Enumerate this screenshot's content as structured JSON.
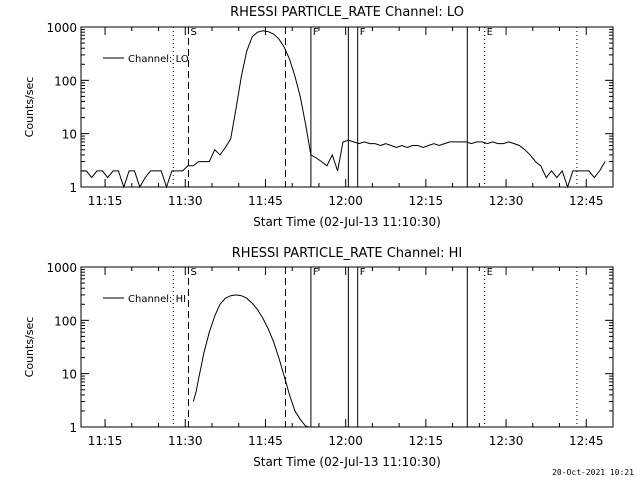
{
  "footer": {
    "timestamp": "20-Oct-2021 10:21"
  },
  "chart_data": [
    {
      "type": "line",
      "title": "RHESSI PARTICLE_RATE Channel: LO",
      "xlabel": "Start Time (02-Jul-13 11:10:30)",
      "ylabel": "Counts/sec",
      "x_unit": "minutes after 11:10:30",
      "xlim": [
        0,
        99.5
      ],
      "ylim": [
        1,
        1000
      ],
      "yscale": "log",
      "grid": false,
      "legend": {
        "label": "Channel: LO",
        "placement": "top-left"
      },
      "x_ticks": [
        "11:15",
        "11:30",
        "11:45",
        "12:00",
        "12:15",
        "12:30",
        "12:45"
      ],
      "y_ticks": [
        "1",
        "10",
        "100",
        "1000"
      ],
      "markers": [
        {
          "label": "S",
          "time": "11:30:36",
          "style": "dashed"
        },
        {
          "label": "",
          "time": "11:48:45",
          "style": "dashed"
        },
        {
          "label": "",
          "time": "11:27:45",
          "style": "dotted"
        },
        {
          "label": "F",
          "time": "11:53:30",
          "style": "solid"
        },
        {
          "label": "",
          "time": "12:00:30",
          "style": "solid"
        },
        {
          "label": "F",
          "time": "12:02:15",
          "style": "solid"
        },
        {
          "label": "",
          "time": "12:22:45",
          "style": "solid"
        },
        {
          "label": "E",
          "time": "12:26:00",
          "style": "dotted"
        },
        {
          "label": "",
          "time": "12:43:15",
          "style": "dotted"
        }
      ],
      "series": [
        {
          "name": "Channel: LO",
          "x": [
            0,
            1,
            2,
            3,
            4,
            5,
            6,
            7,
            8,
            9,
            10,
            11,
            12,
            13,
            14,
            15,
            16,
            17,
            18,
            19,
            20,
            21,
            22,
            23,
            24,
            25,
            26,
            27,
            28,
            29,
            30,
            31,
            32,
            33,
            34,
            35,
            36,
            37,
            38,
            39,
            40,
            41,
            42,
            43,
            44,
            45,
            46,
            47,
            48,
            49,
            50,
            51,
            52,
            53,
            54,
            55,
            56,
            57,
            58,
            59,
            60,
            61,
            62,
            63,
            64,
            65,
            66,
            67,
            68,
            69,
            70,
            71,
            72,
            73,
            74,
            75,
            76,
            77,
            78,
            79,
            80,
            81,
            82,
            83,
            84,
            85,
            86,
            87,
            88,
            89,
            90,
            91,
            92,
            93,
            94,
            95,
            96,
            97,
            98
          ],
          "y": [
            2,
            2,
            1.5,
            2,
            2,
            1.5,
            2,
            2,
            1,
            2,
            2,
            1,
            1.5,
            2,
            2,
            2,
            1,
            2,
            2,
            2,
            2.5,
            2.5,
            3,
            3,
            3,
            5,
            4,
            5.5,
            8,
            30,
            120,
            350,
            650,
            800,
            850,
            820,
            740,
            600,
            420,
            250,
            120,
            50,
            15,
            4,
            3.5,
            3,
            2.5,
            4,
            2,
            7,
            7.5,
            7,
            6.5,
            7,
            6.5,
            6.5,
            6,
            6.5,
            6,
            5.5,
            6,
            5.5,
            6,
            6,
            5.5,
            6,
            6.5,
            6,
            6.5,
            7,
            7,
            7,
            7,
            6.5,
            7,
            7,
            6.5,
            7,
            6.5,
            6.5,
            7,
            6.5,
            6,
            5,
            4,
            3,
            2.5,
            1.5,
            2,
            1.5,
            2,
            1,
            2,
            2,
            2,
            2,
            1.5,
            2,
            3
          ]
        }
      ]
    },
    {
      "type": "line",
      "title": "RHESSI PARTICLE_RATE Channel: HI",
      "xlabel": "Start Time (02-Jul-13 11:10:30)",
      "ylabel": "Counts/sec",
      "x_unit": "minutes after 11:10:30",
      "xlim": [
        0,
        99.5
      ],
      "ylim": [
        1,
        1000
      ],
      "yscale": "log",
      "grid": false,
      "legend": {
        "label": "Channel: HI",
        "placement": "top-left"
      },
      "x_ticks": [
        "11:15",
        "11:30",
        "11:45",
        "12:00",
        "12:15",
        "12:30",
        "12:45"
      ],
      "y_ticks": [
        "1",
        "10",
        "100",
        "1000"
      ],
      "markers": [
        {
          "label": "S",
          "time": "11:30:36",
          "style": "dashed"
        },
        {
          "label": "",
          "time": "11:48:45",
          "style": "dashed"
        },
        {
          "label": "",
          "time": "11:27:45",
          "style": "dotted"
        },
        {
          "label": "F",
          "time": "11:53:30",
          "style": "solid"
        },
        {
          "label": "",
          "time": "12:00:30",
          "style": "solid"
        },
        {
          "label": "F",
          "time": "12:02:15",
          "style": "solid"
        },
        {
          "label": "",
          "time": "12:22:45",
          "style": "solid"
        },
        {
          "label": "E",
          "time": "12:26:00",
          "style": "dotted"
        },
        {
          "label": "",
          "time": "12:43:15",
          "style": "dotted"
        }
      ],
      "series": [
        {
          "name": "Channel: HI",
          "x": [
            21,
            21.5,
            22,
            23,
            24,
            25,
            26,
            27,
            28,
            29,
            30,
            31,
            32,
            33,
            34,
            35,
            36,
            37,
            38,
            39,
            40,
            41,
            41.5,
            42,
            42.5
          ],
          "y": [
            3,
            4.5,
            8,
            25,
            60,
            120,
            200,
            260,
            290,
            300,
            290,
            260,
            210,
            160,
            110,
            70,
            40,
            20,
            9,
            4,
            2,
            1.4,
            1.2,
            1.05,
            1
          ]
        }
      ]
    }
  ]
}
